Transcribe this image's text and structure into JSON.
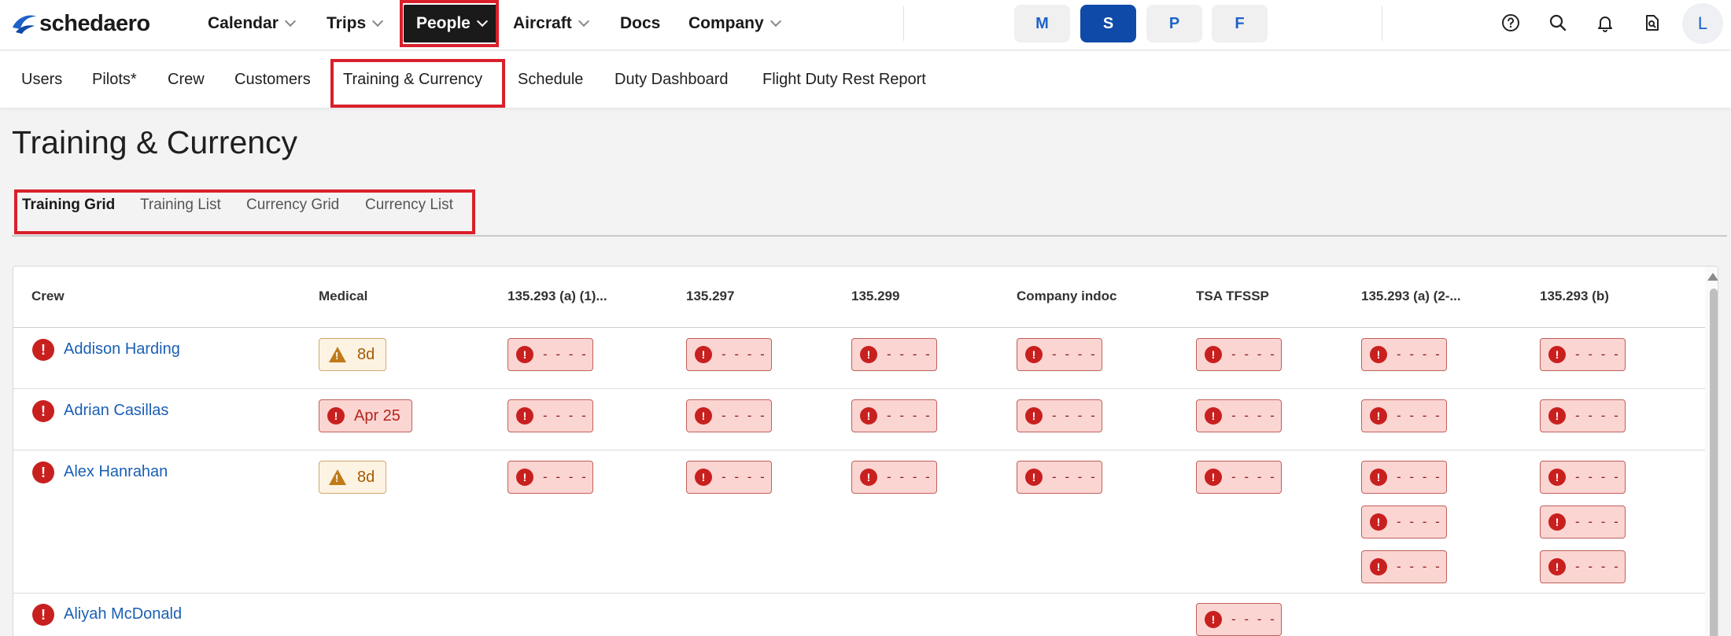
{
  "brand": {
    "name": "schedaero"
  },
  "topnav": [
    {
      "label": "Calendar"
    },
    {
      "label": "Trips"
    },
    {
      "label": "People"
    },
    {
      "label": "Aircraft"
    },
    {
      "label": "Docs"
    },
    {
      "label": "Company"
    }
  ],
  "mode_pills": [
    "M",
    "S",
    "P",
    "F"
  ],
  "user": {
    "initial": "L"
  },
  "subnav": [
    {
      "label": "Users"
    },
    {
      "label": "Pilots*"
    },
    {
      "label": "Crew"
    },
    {
      "label": "Customers"
    },
    {
      "label": "Training & Currency"
    },
    {
      "label": "Schedule"
    },
    {
      "label": "Duty Dashboard"
    },
    {
      "label": "Flight Duty Rest Report"
    }
  ],
  "page": {
    "title": "Training & Currency"
  },
  "tabs": [
    {
      "label": "Training Grid"
    },
    {
      "label": "Training List"
    },
    {
      "label": "Currency Grid"
    },
    {
      "label": "Currency List"
    }
  ],
  "grid": {
    "columns": [
      "Crew",
      "Medical",
      "135.293 (a) (1)...",
      "135.297",
      "135.299",
      "Company indoc",
      "TSA TFSSP",
      "135.293 (a) (2-...",
      "135.293 (b)"
    ],
    "dash": "- - - -",
    "alert_glyph": "!",
    "rows": [
      {
        "name": "Addison Harding",
        "medical": "8d"
      },
      {
        "name": "Adrian Casillas",
        "medical": "Apr 25"
      },
      {
        "name": "Alex Hanrahan",
        "medical": "8d"
      },
      {
        "name": "Aliyah McDonald",
        "medical": ""
      }
    ]
  },
  "colors": {
    "accent": "#0f4aa8",
    "danger": "#c8201f",
    "highlight": "#d9202a",
    "link": "#1a5fb4"
  }
}
